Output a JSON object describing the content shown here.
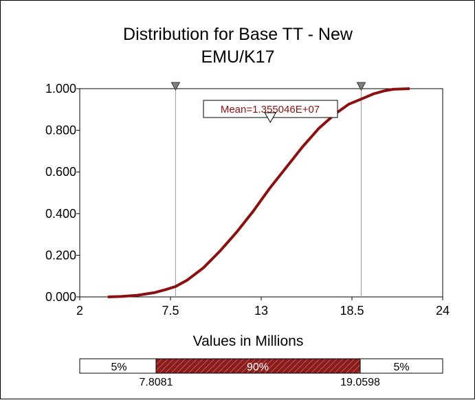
{
  "chart_data": {
    "type": "line",
    "title": [
      "Distribution for Base TT - New",
      "EMU/K17"
    ],
    "xlabel": "Values in Millions",
    "ylabel": "",
    "xlim": [
      2,
      24
    ],
    "ylim": [
      0,
      1
    ],
    "x_ticks": [
      "2",
      "7.5",
      "13",
      "18.5",
      "24"
    ],
    "x_tick_values": [
      2,
      7.5,
      13,
      18.5,
      24
    ],
    "y_ticks": [
      "0.000",
      "0.200",
      "0.400",
      "0.600",
      "0.800",
      "1.000"
    ],
    "y_tick_values": [
      0,
      0.2,
      0.4,
      0.6,
      0.8,
      1.0
    ],
    "series": [
      {
        "color": "#8b1010",
        "x": [
          3.7,
          4.5,
          5.5,
          6.5,
          7.2,
          7.8081,
          8.5,
          9.5,
          10.5,
          11.5,
          12.5,
          13.5,
          14.5,
          15.5,
          16.5,
          17.5,
          18.3,
          19.0598,
          19.8,
          20.5,
          21.0,
          22.0
        ],
        "y": [
          0.0,
          0.002,
          0.008,
          0.02,
          0.035,
          0.05,
          0.08,
          0.14,
          0.22,
          0.31,
          0.41,
          0.52,
          0.62,
          0.72,
          0.81,
          0.88,
          0.925,
          0.95,
          0.975,
          0.99,
          0.997,
          1.0
        ]
      }
    ],
    "markers": [
      {
        "x": 7.8081,
        "label": "7.8081"
      },
      {
        "x": 19.0598,
        "label": "19.0598"
      }
    ],
    "mean": {
      "x": 13.55046,
      "label": "Mean=1.355046E+07"
    },
    "probability_bar": {
      "left": "5%",
      "middle": "90%",
      "right": "5%",
      "left_value": "7.8081",
      "right_value": "19.0598"
    },
    "colors": {
      "curve": "#8b1010",
      "middle_band": "#8b1c1c",
      "marker": "#808080"
    }
  }
}
